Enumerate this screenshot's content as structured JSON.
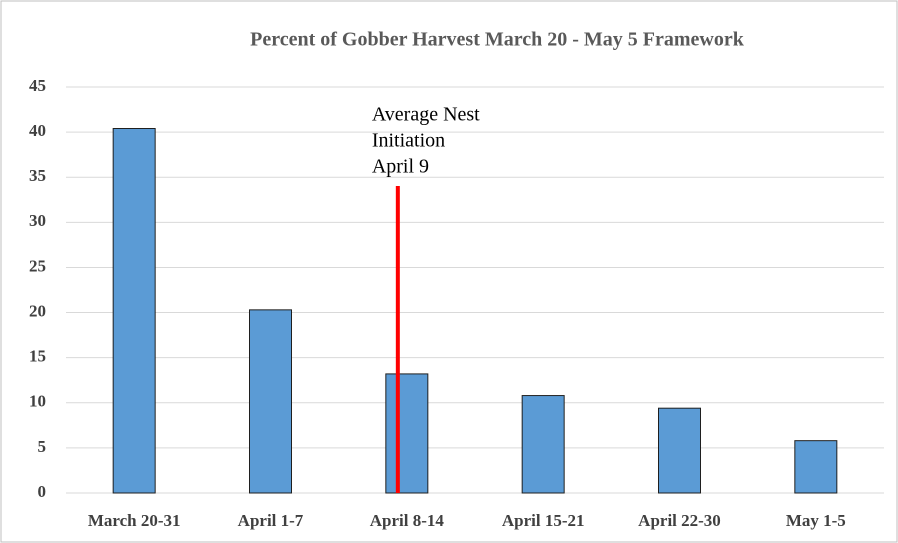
{
  "chart_data": {
    "type": "bar",
    "title": "Percent of Gobber Harvest March 20 - May 5 Framework",
    "categories": [
      "March 20-31",
      "April 1-7",
      "April 8-14",
      "April 15-21",
      "April 22-30",
      "May 1-5"
    ],
    "values": [
      40.4,
      20.3,
      13.2,
      10.8,
      9.4,
      5.8
    ],
    "color": "#5b9bd5",
    "ylim": [
      0,
      45
    ],
    "yticks": [
      0,
      5,
      10,
      15,
      20,
      25,
      30,
      35,
      40,
      45
    ],
    "grid": true,
    "annotation": [
      "Average Nest",
      "Initiation",
      "April 9"
    ]
  }
}
